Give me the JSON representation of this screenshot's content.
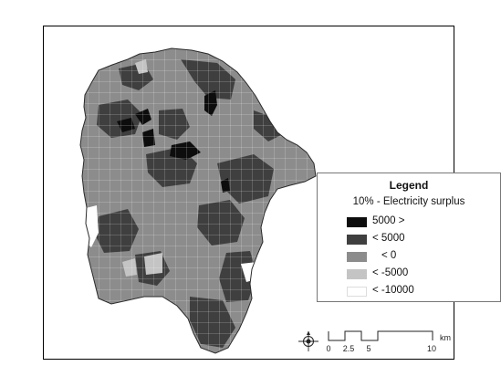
{
  "legend": {
    "title": "Legend",
    "subtitle": "10% - Electricity surplus",
    "items": [
      {
        "label": "5000 >",
        "color": "#0d0d0d"
      },
      {
        "label": "< 5000",
        "color": "#3f3f3f"
      },
      {
        "label": "< 0",
        "color": "#8c8c8c"
      },
      {
        "label": "< -5000",
        "color": "#c4c4c4"
      },
      {
        "label": "< -10000",
        "color": "#ffffff"
      }
    ]
  },
  "scale_bar": {
    "ticks": [
      "0",
      "2.5",
      "5",
      "10"
    ],
    "unit": "km"
  },
  "icons": {
    "north_arrow": "north-arrow-icon"
  }
}
